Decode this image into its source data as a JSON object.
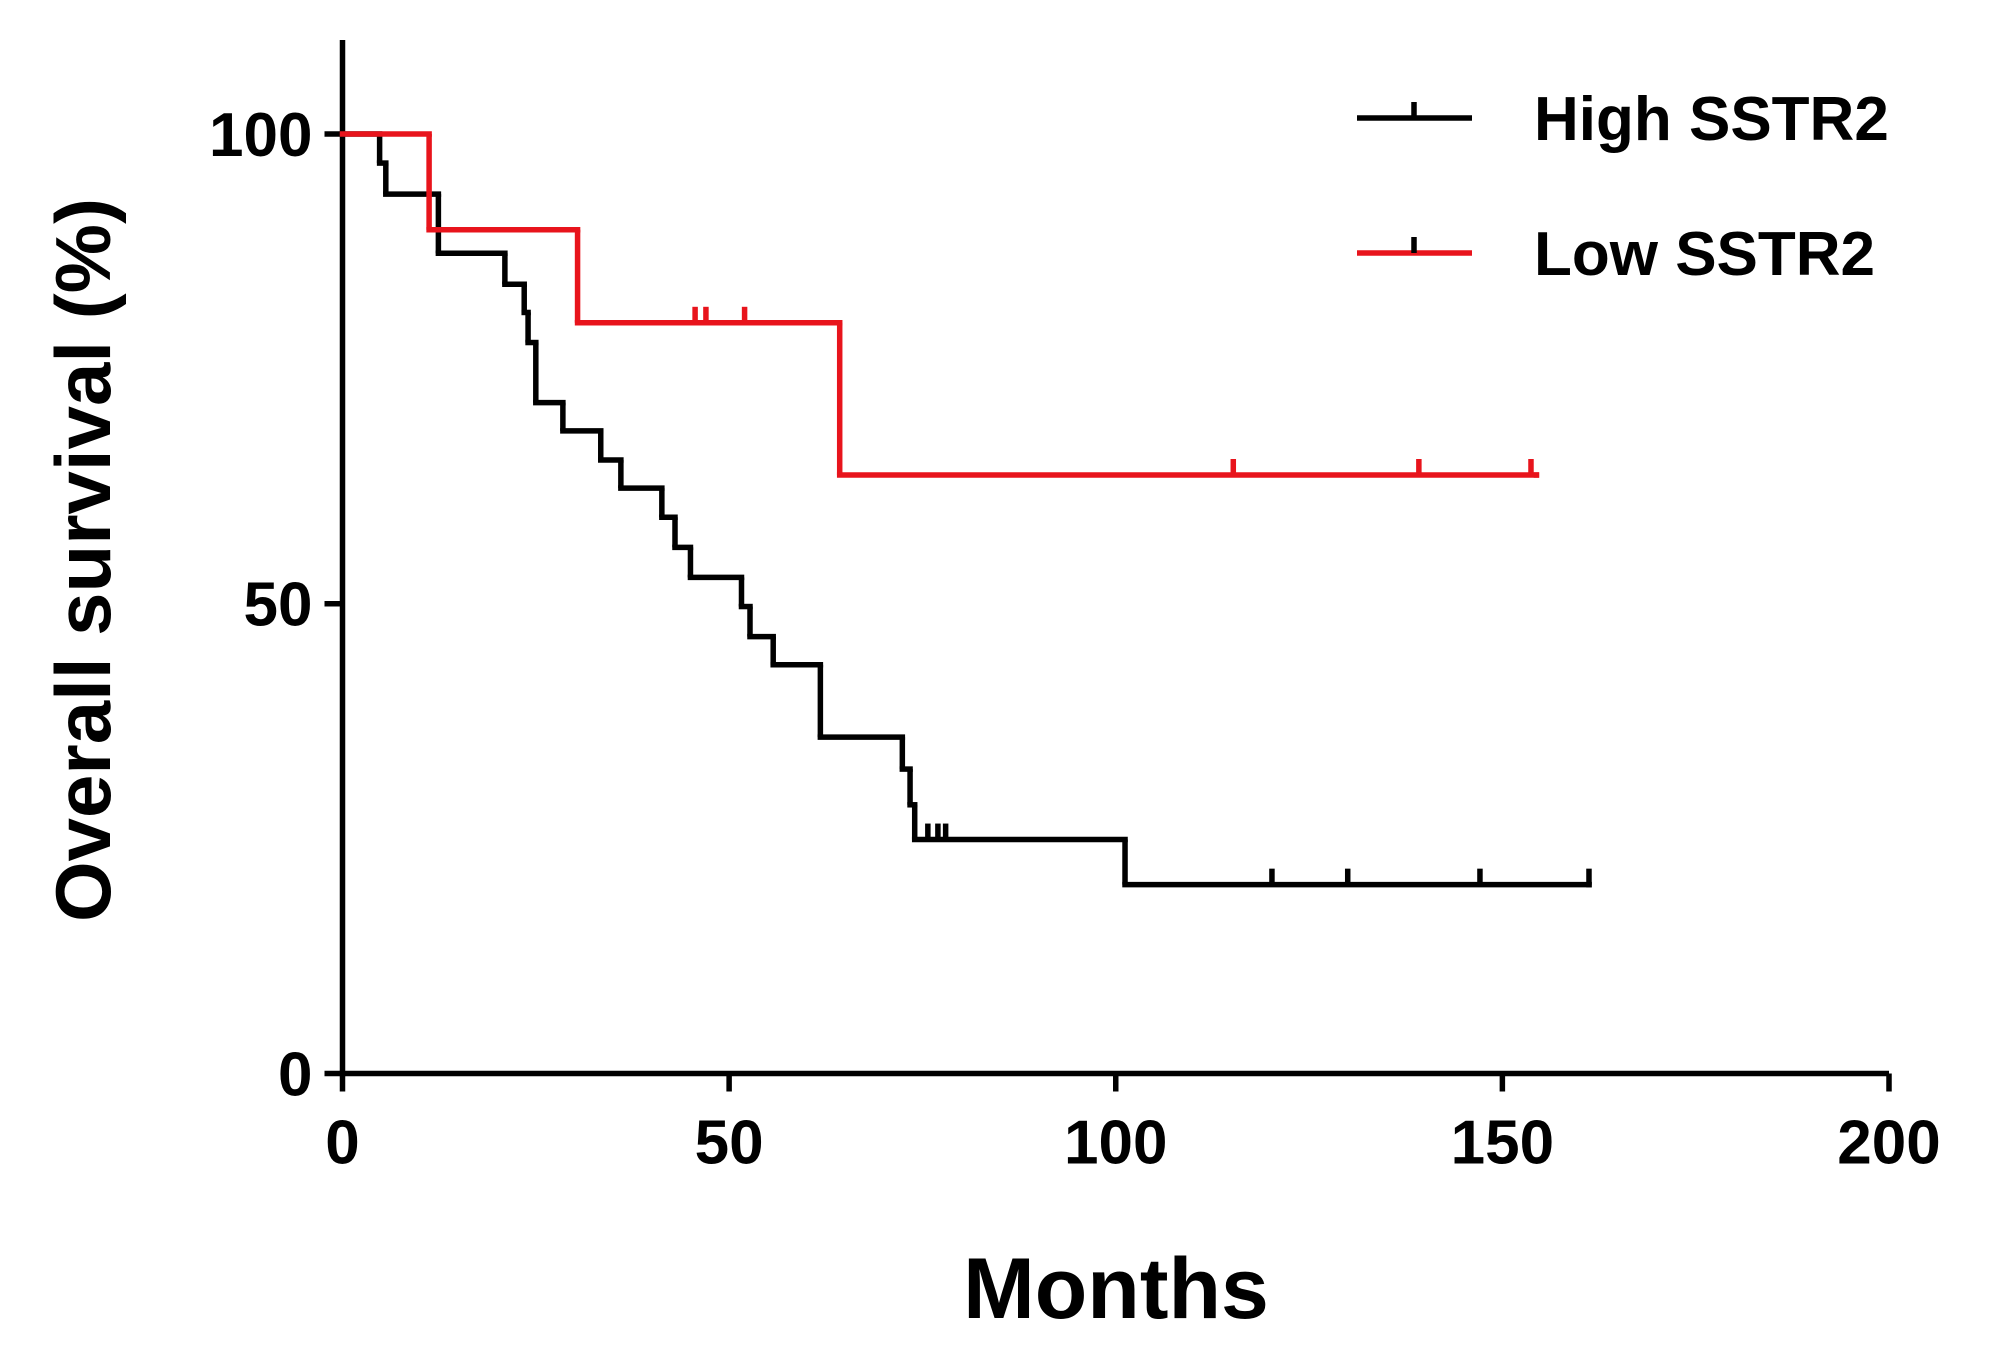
{
  "chart_data": {
    "type": "survival",
    "x_label": "Months",
    "y_label": "Overall survival (%)",
    "xlim": [
      0,
      200
    ],
    "ylim": [
      0,
      110
    ],
    "xticks": [
      0,
      50,
      100,
      150,
      200
    ],
    "yticks": [
      0,
      50,
      100
    ],
    "legend": "top-right",
    "series": [
      {
        "name": "High SSTR2",
        "color": "#000000",
        "x": [
          0,
          4.8,
          5.6,
          12.4,
          21,
          23.5,
          24,
          25,
          28.5,
          33.4,
          36,
          41.3,
          43,
          45,
          51.6,
          52.7,
          55.7,
          61.8,
          72.4,
          73.4,
          74,
          101.2,
          161.2
        ],
        "values": [
          100,
          96.9,
          93.6,
          87.3,
          84,
          81,
          77.8,
          71.4,
          68.4,
          65.3,
          62.3,
          59.2,
          56,
          52.8,
          49.7,
          46.5,
          43.5,
          35.8,
          32.4,
          28.6,
          24.9,
          20.1,
          20.1
        ],
        "censored": [
          75.7,
          77,
          78,
          120.2,
          130,
          147.1,
          161.2
        ]
      },
      {
        "name": "Low SSTR2",
        "color": "#e8141c",
        "x": [
          0,
          11.2,
          30.4,
          64.3,
          154.4
        ],
        "values": [
          100,
          89.8,
          79.9,
          63.7,
          63.7
        ],
        "censored": [
          45.6,
          47,
          52,
          115.2,
          139.2,
          153.7
        ]
      }
    ]
  }
}
